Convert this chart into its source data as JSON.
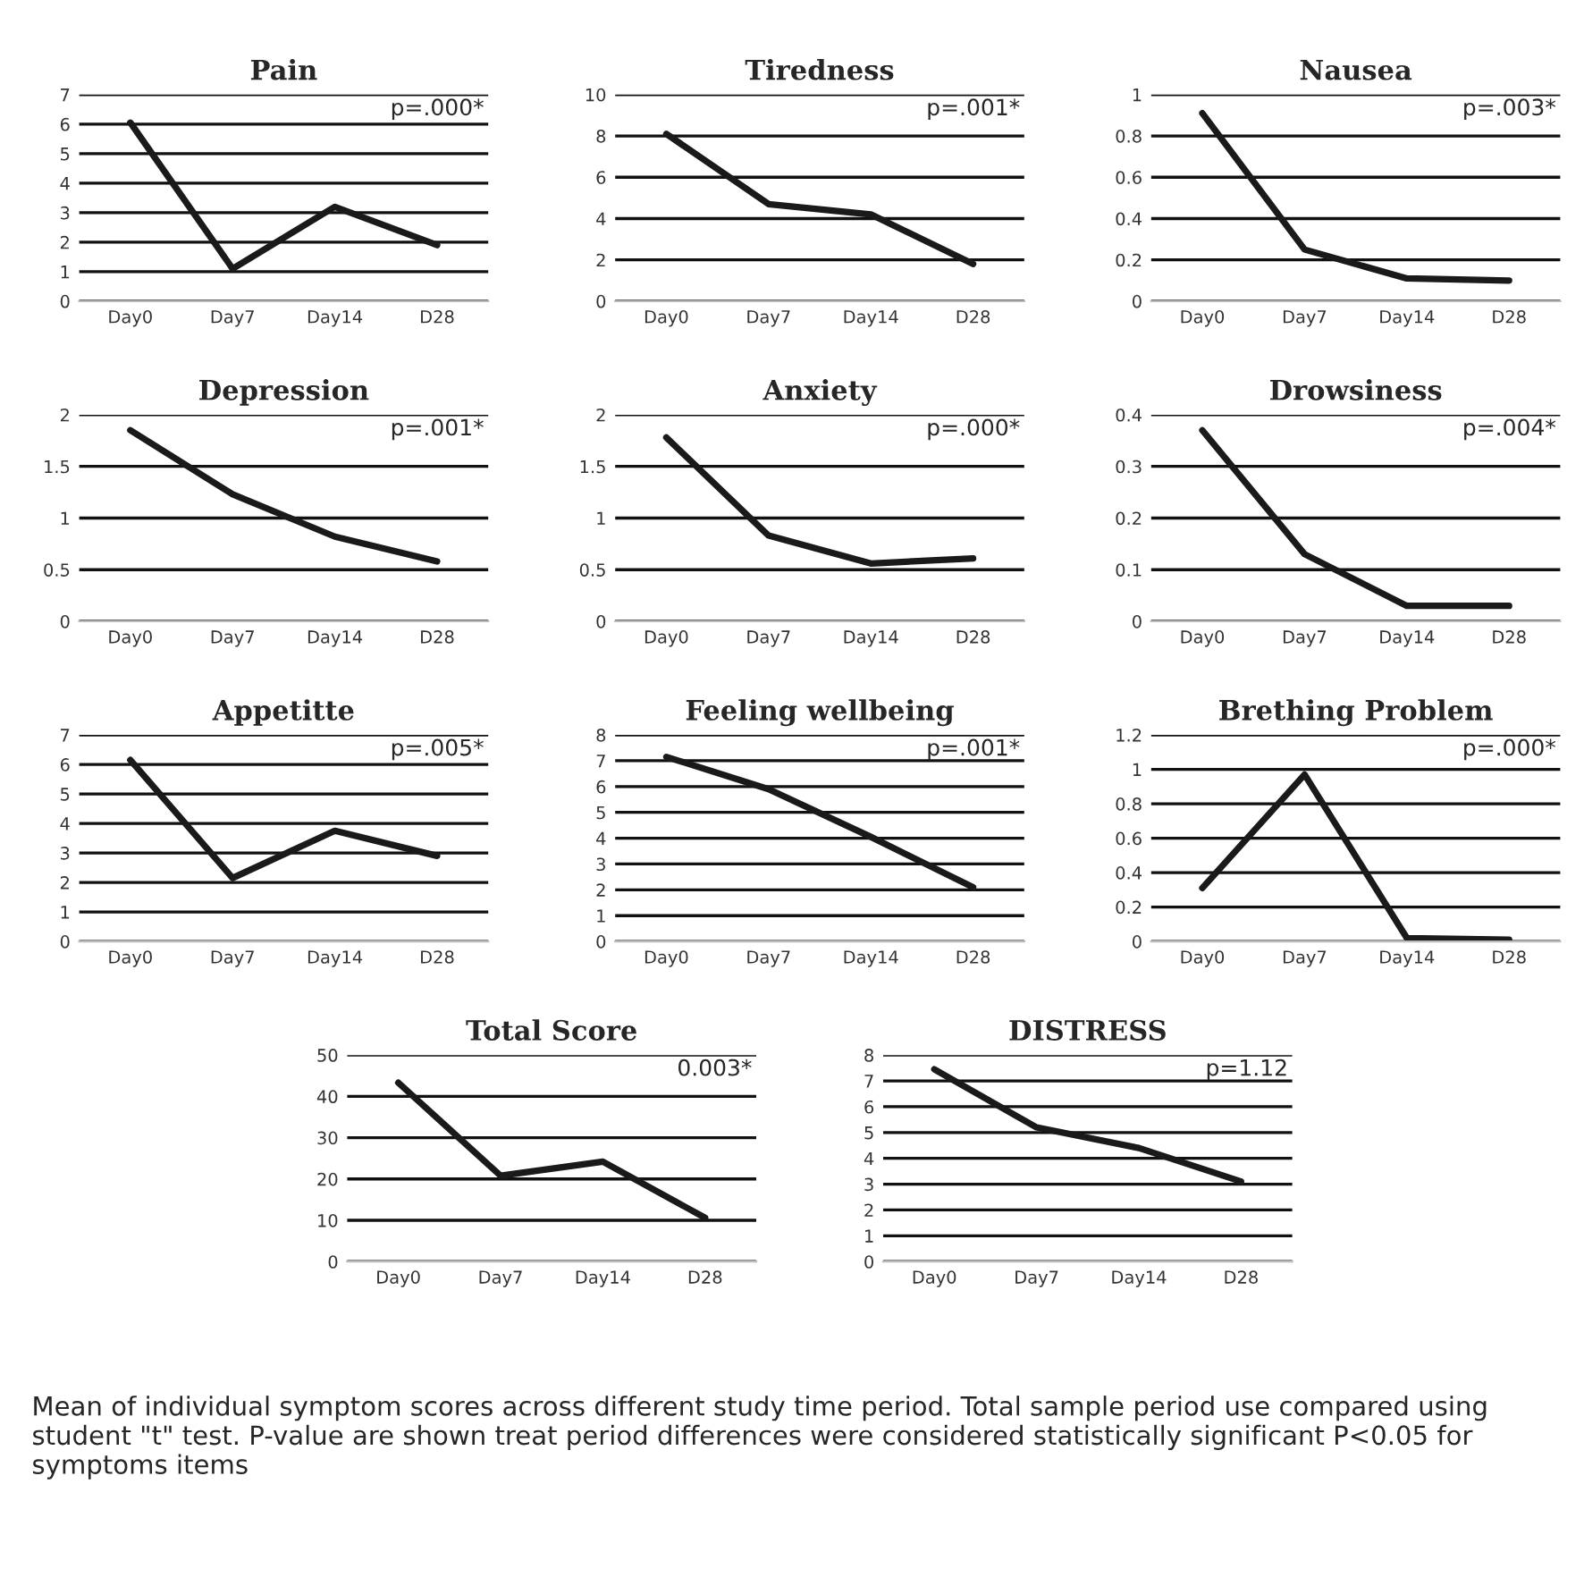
{
  "chart_data": [
    {
      "type": "line",
      "title": "Pain",
      "categories": [
        "Day0",
        "Day7",
        "Day14",
        "D28"
      ],
      "series": [
        {
          "color": "#1a1a1a",
          "values": [
            6.05,
            1.1,
            3.2,
            1.9
          ]
        }
      ],
      "ylim": [
        0,
        7
      ],
      "yticks": [
        0,
        1,
        2,
        3,
        4,
        5,
        6,
        7
      ],
      "grid": "y",
      "annotations": [
        "p=.000*"
      ]
    },
    {
      "type": "line",
      "title": "Tiredness",
      "categories": [
        "Day0",
        "Day7",
        "Day14",
        "D28"
      ],
      "series": [
        {
          "color": "#1a1a1a",
          "values": [
            8.1,
            4.7,
            4.2,
            1.8
          ]
        }
      ],
      "ylim": [
        0,
        10
      ],
      "yticks": [
        0,
        2,
        4,
        6,
        8,
        10
      ],
      "grid": "y",
      "annotations": [
        "p=.001*"
      ]
    },
    {
      "type": "line",
      "title": "Nausea",
      "categories": [
        "Day0",
        "Day7",
        "Day14",
        "D28"
      ],
      "series": [
        {
          "color": "#1a1a1a",
          "values": [
            0.91,
            0.25,
            0.11,
            0.1
          ]
        }
      ],
      "ylim": [
        0,
        1
      ],
      "yticks": [
        0,
        0.2,
        0.4,
        0.6,
        0.8,
        1
      ],
      "grid": "y",
      "annotations": [
        "p=.003*"
      ]
    },
    {
      "type": "line",
      "title": "Depression",
      "categories": [
        "Day0",
        "Day7",
        "Day14",
        "D28"
      ],
      "series": [
        {
          "color": "#1a1a1a",
          "values": [
            1.85,
            1.23,
            0.82,
            0.58
          ]
        }
      ],
      "ylim": [
        0,
        2
      ],
      "yticks": [
        0,
        0.5,
        1,
        1.5,
        2
      ],
      "grid": "y",
      "annotations": [
        "p=.001*"
      ]
    },
    {
      "type": "line",
      "title": "Anxiety",
      "categories": [
        "Day0",
        "Day7",
        "Day14",
        "D28"
      ],
      "series": [
        {
          "color": "#1a1a1a",
          "values": [
            1.78,
            0.83,
            0.56,
            0.61
          ]
        }
      ],
      "ylim": [
        0,
        2
      ],
      "yticks": [
        0,
        0.5,
        1,
        1.5,
        2
      ],
      "grid": "y",
      "annotations": [
        "p=.000*"
      ]
    },
    {
      "type": "line",
      "title": "Drowsiness",
      "categories": [
        "Day0",
        "Day7",
        "Day14",
        "D28"
      ],
      "series": [
        {
          "color": "#1a1a1a",
          "values": [
            0.37,
            0.13,
            0.03,
            0.03
          ]
        }
      ],
      "ylim": [
        0,
        0.4
      ],
      "yticks": [
        0,
        0.1,
        0.2,
        0.3,
        0.4
      ],
      "grid": "y",
      "annotations": [
        "p=.004*"
      ]
    },
    {
      "type": "line",
      "title": "Appetitte",
      "categories": [
        "Day0",
        "Day7",
        "Day14",
        "D28"
      ],
      "series": [
        {
          "color": "#1a1a1a",
          "values": [
            6.15,
            2.15,
            3.75,
            2.9
          ]
        }
      ],
      "ylim": [
        0,
        7
      ],
      "yticks": [
        0,
        1,
        2,
        3,
        4,
        5,
        6,
        7
      ],
      "grid": "y",
      "annotations": [
        "p=.005*"
      ]
    },
    {
      "type": "line",
      "title": "Feeling wellbeing",
      "categories": [
        "Day0",
        "Day7",
        "Day14",
        "D28"
      ],
      "series": [
        {
          "color": "#1a1a1a",
          "values": [
            7.15,
            5.9,
            4.05,
            2.1
          ]
        }
      ],
      "ylim": [
        0,
        8
      ],
      "yticks": [
        0,
        1,
        2,
        3,
        4,
        5,
        6,
        7,
        8
      ],
      "grid": "y",
      "annotations": [
        "p=.001*"
      ]
    },
    {
      "type": "line",
      "title": "Brething Problem",
      "categories": [
        "Day0",
        "Day7",
        "Day14",
        "D28"
      ],
      "series": [
        {
          "color": "#1a1a1a",
          "values": [
            0.31,
            0.97,
            0.02,
            0.01
          ]
        }
      ],
      "ylim": [
        0,
        1.2
      ],
      "yticks": [
        0,
        0.2,
        0.4,
        0.6,
        0.8,
        1,
        1.2
      ],
      "grid": "y",
      "annotations": [
        "p=.000*"
      ]
    },
    {
      "type": "line",
      "title": "Total Score",
      "categories": [
        "Day0",
        "Day7",
        "Day14",
        "D28"
      ],
      "series": [
        {
          "color": "#1a1a1a",
          "values": [
            43.3,
            20.8,
            24.2,
            10.6
          ]
        }
      ],
      "ylim": [
        0,
        50
      ],
      "yticks": [
        0,
        10,
        20,
        30,
        40,
        50
      ],
      "grid": "y",
      "annotations": [
        "0.003*"
      ]
    },
    {
      "type": "line",
      "title": "DISTRESS",
      "categories": [
        "Day0",
        "Day7",
        "Day14",
        "D28"
      ],
      "series": [
        {
          "color": "#1a1a1a",
          "values": [
            7.45,
            5.2,
            4.4,
            3.1
          ]
        }
      ],
      "ylim": [
        0,
        8
      ],
      "yticks": [
        0,
        1,
        2,
        3,
        4,
        5,
        6,
        7,
        8
      ],
      "grid": "y",
      "annotations": [
        "p=1.12",
        "Mean of individual symptom scores across different study time period. Total sample period use compared using student \"t\" test. P-value are shown treat period differences were considered statistically significant P<0.05 for symptoms items"
      ]
    }
  ]
}
